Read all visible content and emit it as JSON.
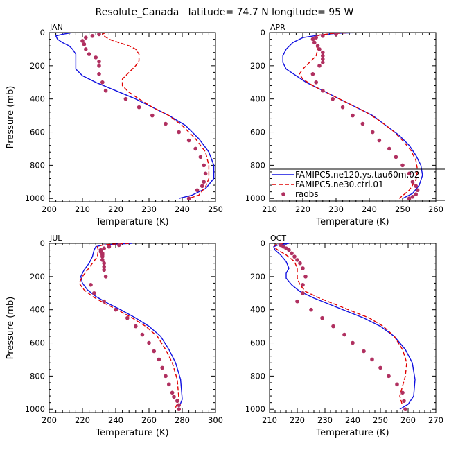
{
  "figure": {
    "title": "Resolute_Canada   latitude= 74.7 N longitude= 95 W"
  },
  "legend": [
    {
      "label": "FAMIPC5.ne120.ys.tau60m.02",
      "color": "#1010e0",
      "style": "solid"
    },
    {
      "label": "FAMIPC5.ne30.ctrl.01",
      "color": "#e00000",
      "style": "dashed"
    },
    {
      "label": "raobs",
      "color": "#b03060",
      "style": "dots"
    }
  ],
  "colors": {
    "model_hi": "#1010e0",
    "model_lo": "#e00000",
    "obs": "#b03060"
  },
  "chart_data": [
    {
      "type": "line",
      "panel": "JAN",
      "xlabel": "Temperature (K)",
      "ylabel": "Pressure (mb)",
      "xlim": [
        200,
        250
      ],
      "ylim": [
        1020,
        0
      ],
      "xticks": [
        "200",
        "210",
        "220",
        "230",
        "240",
        "250"
      ],
      "yticks": [
        "0",
        "200",
        "400",
        "600",
        "800",
        "1000"
      ],
      "series": [
        {
          "name": "FAMIPC5.ne120.ys.tau60m.02",
          "x": [
            207,
            204,
            202,
            202.5,
            204,
            206,
            207,
            208,
            208,
            208,
            210,
            214,
            220,
            226,
            231,
            236,
            241,
            245,
            248,
            249.5,
            249.5,
            247,
            243,
            239
          ],
          "y": [
            0,
            10,
            20,
            40,
            60,
            80,
            100,
            130,
            170,
            220,
            260,
            300,
            350,
            400,
            450,
            500,
            560,
            640,
            720,
            800,
            880,
            940,
            980,
            1000
          ]
        },
        {
          "name": "FAMIPC5.ne30.ctrl.01",
          "x": [
            217,
            216,
            216.5,
            218,
            221,
            224,
            226,
            227,
            227,
            226,
            224,
            222,
            222,
            224,
            227,
            231,
            236,
            240,
            244,
            247,
            248,
            248,
            247,
            245,
            242
          ],
          "y": [
            0,
            10,
            20,
            40,
            60,
            80,
            100,
            130,
            170,
            200,
            240,
            280,
            320,
            360,
            400,
            450,
            500,
            560,
            640,
            720,
            800,
            880,
            930,
            980,
            1000
          ]
        },
        {
          "name": "raobs",
          "x": [
            215,
            213,
            211,
            210,
            210.5,
            211,
            212,
            214,
            215,
            215,
            215,
            216,
            217,
            223,
            227,
            231,
            235,
            239,
            242,
            244,
            245.5,
            246.5,
            247,
            246.5,
            246,
            244.5,
            242
          ],
          "y": [
            10,
            20,
            30,
            50,
            70,
            100,
            130,
            150,
            175,
            200,
            250,
            300,
            350,
            400,
            450,
            500,
            550,
            600,
            650,
            700,
            750,
            800,
            850,
            900,
            925,
            950,
            1000
          ],
          "style": "dots"
        }
      ]
    },
    {
      "type": "line",
      "panel": "APR",
      "xlabel": "Temperature (K)",
      "ylabel": "",
      "xlim": [
        210,
        260
      ],
      "ylim": [
        1020,
        0
      ],
      "xticks": [
        "210",
        "220",
        "230",
        "240",
        "250",
        "260"
      ],
      "yticks": [
        "0",
        "200",
        "400",
        "600",
        "800",
        "1000"
      ],
      "series": [
        {
          "name": "FAMIPC5.ne120.ys.tau60m.02",
          "x": [
            237,
            230,
            225,
            220,
            217,
            215,
            214,
            214,
            215,
            218,
            221,
            225,
            229,
            233,
            237,
            241,
            245,
            249,
            252,
            254,
            255.5,
            256,
            255,
            253,
            250
          ],
          "y": [
            0,
            5,
            15,
            30,
            60,
            100,
            140,
            180,
            220,
            260,
            300,
            340,
            380,
            420,
            460,
            500,
            560,
            620,
            680,
            740,
            800,
            860,
            920,
            970,
            1000
          ]
        },
        {
          "name": "FAMIPC5.ne30.ctrl.01",
          "x": [
            235,
            229,
            225,
            223,
            223.5,
            224.5,
            224,
            222,
            220,
            219,
            220,
            223,
            227,
            231,
            235,
            239,
            243,
            247,
            250,
            252.5,
            254,
            254.5,
            254,
            252,
            249
          ],
          "y": [
            0,
            5,
            15,
            30,
            60,
            100,
            140,
            180,
            220,
            250,
            280,
            320,
            360,
            400,
            440,
            480,
            530,
            590,
            650,
            710,
            770,
            830,
            890,
            950,
            1000
          ]
        },
        {
          "name": "raobs",
          "x": [
            230,
            226,
            224,
            223,
            223.5,
            224.5,
            225,
            226,
            226,
            226,
            226,
            225,
            223,
            224,
            226,
            229,
            232,
            235,
            238,
            241,
            243,
            246,
            248,
            250,
            252,
            253,
            254,
            254.5,
            254,
            253,
            252
          ],
          "y": [
            10,
            20,
            30,
            40,
            60,
            80,
            100,
            120,
            140,
            160,
            180,
            200,
            250,
            300,
            350,
            400,
            450,
            500,
            550,
            600,
            650,
            700,
            750,
            800,
            850,
            900,
            925,
            950,
            975,
            990,
            1000
          ],
          "style": "dots"
        }
      ]
    },
    {
      "type": "line",
      "panel": "JUL",
      "xlabel": "Temperature (K)",
      "ylabel": "Pressure (mb)",
      "xlim": [
        200,
        300
      ],
      "ylim": [
        1020,
        0
      ],
      "xticks": [
        "200",
        "220",
        "240",
        "260",
        "280",
        "300"
      ],
      "yticks": [
        "0",
        "200",
        "400",
        "600",
        "800",
        "1000"
      ],
      "series": [
        {
          "name": "FAMIPC5.ne120.ys.tau60m.02",
          "x": [
            250,
            240,
            232,
            228,
            227,
            226,
            224,
            221,
            219,
            220,
            223,
            228,
            235,
            243,
            252,
            260,
            267,
            272,
            276,
            279,
            280,
            278
          ],
          "y": [
            0,
            5,
            10,
            20,
            40,
            80,
            120,
            160,
            200,
            240,
            280,
            320,
            360,
            400,
            450,
            500,
            560,
            640,
            720,
            820,
            940,
            990
          ]
        },
        {
          "name": "FAMIPC5.ne30.ctrl.01",
          "x": [
            248,
            238,
            232,
            229,
            229.5,
            229,
            226,
            223,
            220,
            218,
            221,
            226,
            233,
            241,
            250,
            258,
            265,
            270,
            274,
            277,
            278,
            276
          ],
          "y": [
            0,
            5,
            10,
            20,
            40,
            80,
            120,
            160,
            200,
            240,
            280,
            320,
            360,
            400,
            450,
            500,
            560,
            640,
            720,
            820,
            940,
            990
          ]
        },
        {
          "name": "raobs",
          "x": [
            242,
            236,
            233,
            231,
            231,
            232,
            232,
            232,
            232,
            233,
            233,
            233,
            234,
            225,
            227,
            233,
            240,
            247,
            252,
            256,
            260,
            263,
            266,
            268,
            270,
            272,
            274,
            275,
            277,
            278,
            278
          ],
          "y": [
            10,
            20,
            30,
            40,
            50,
            60,
            70,
            80,
            100,
            120,
            140,
            160,
            200,
            250,
            300,
            350,
            400,
            450,
            500,
            550,
            600,
            650,
            700,
            750,
            800,
            850,
            900,
            925,
            950,
            975,
            1000
          ],
          "style": "dots"
        }
      ]
    },
    {
      "type": "line",
      "panel": "OCT",
      "xlabel": "Temperature (K)",
      "ylabel": "",
      "xlim": [
        210,
        270
      ],
      "ylim": [
        1020,
        0
      ],
      "xticks": [
        "210",
        "220",
        "230",
        "240",
        "250",
        "260",
        "270"
      ],
      "yticks": [
        "0",
        "200",
        "400",
        "600",
        "800",
        "1000"
      ],
      "series": [
        {
          "name": "FAMIPC5.ne120.ys.tau60m.02",
          "x": [
            217,
            213,
            211.5,
            212,
            214,
            216,
            217,
            216,
            216,
            218,
            221,
            226,
            232,
            238,
            244,
            250,
            255,
            259,
            261.5,
            262.5,
            262,
            260,
            257
          ],
          "y": [
            0,
            10,
            20,
            40,
            70,
            110,
            150,
            180,
            210,
            250,
            290,
            330,
            370,
            410,
            450,
            500,
            560,
            640,
            720,
            820,
            920,
            970,
            1000
          ]
        },
        {
          "name": "FAMIPC5.ne30.ctrl.01",
          "x": [
            215,
            212,
            211.5,
            213,
            216,
            219,
            220,
            220,
            220,
            221,
            223,
            228,
            234,
            240,
            246,
            251,
            255,
            258,
            259.5,
            259,
            258,
            257,
            258
          ],
          "y": [
            0,
            10,
            20,
            40,
            70,
            110,
            150,
            180,
            210,
            250,
            290,
            330,
            370,
            410,
            450,
            500,
            560,
            640,
            720,
            800,
            860,
            920,
            980
          ]
        },
        {
          "name": "raobs",
          "x": [
            214,
            215,
            216,
            217,
            218,
            219,
            220,
            221,
            222,
            223,
            222,
            222,
            220,
            225,
            229,
            233,
            237,
            240,
            244,
            247,
            250,
            253,
            256,
            258,
            258.5,
            259
          ],
          "y": [
            10,
            20,
            30,
            40,
            60,
            80,
            100,
            120,
            150,
            200,
            250,
            300,
            350,
            400,
            450,
            500,
            550,
            600,
            650,
            700,
            750,
            800,
            850,
            900,
            950,
            1000
          ],
          "style": "dots"
        }
      ]
    }
  ]
}
